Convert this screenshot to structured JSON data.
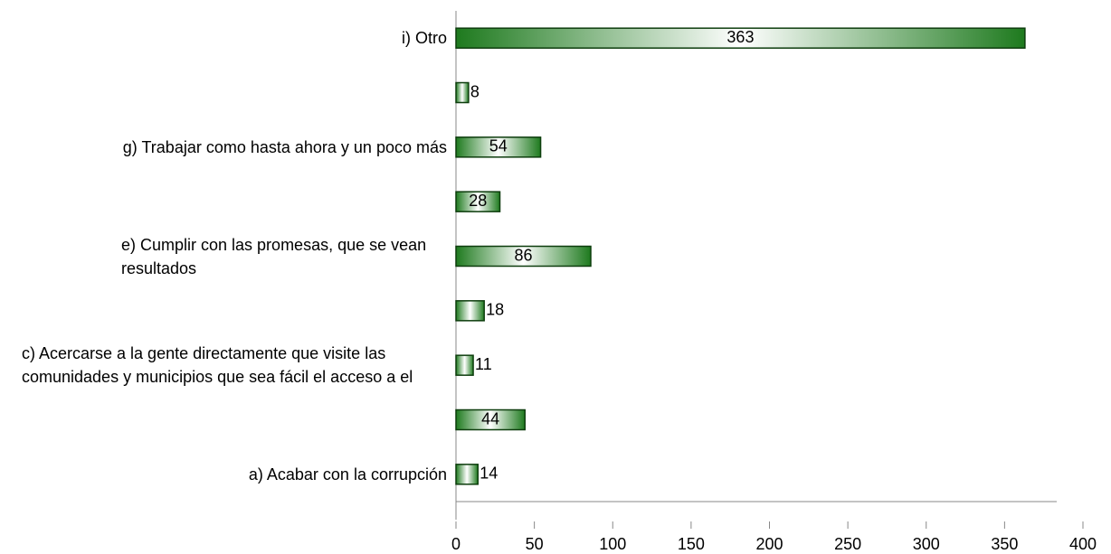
{
  "chart_data": {
    "type": "hbar",
    "categories": [
      "a) Acabar con la corrupción",
      null,
      "c) Acercarse a la gente directamente que visite las comunidades y municipios que sea fácil el acceso a el",
      null,
      "e) Cumplir con las promesas, que se vean resultados",
      null,
      "g) Trabajar como hasta ahora y un poco más",
      null,
      "i) Otro"
    ],
    "values": [
      14,
      44,
      11,
      18,
      86,
      28,
      54,
      8,
      363
    ],
    "color": "#1e7a1e",
    "xlim": [
      0,
      400
    ],
    "xticks": [
      0,
      50,
      100,
      150,
      200,
      250,
      300,
      350,
      400
    ]
  }
}
